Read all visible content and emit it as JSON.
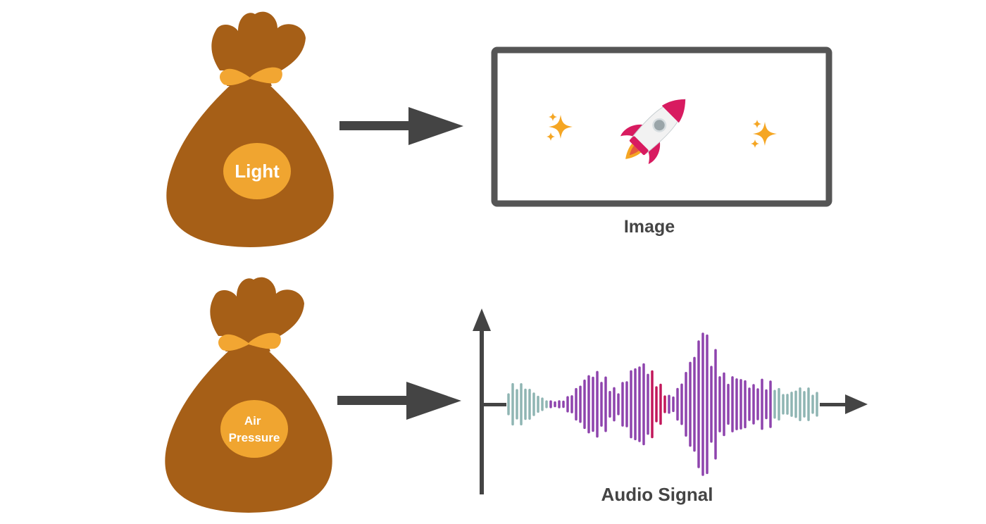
{
  "bags": [
    {
      "label_lines": [
        "Light"
      ]
    },
    {
      "label_lines": [
        "Air",
        "Pressure"
      ]
    }
  ],
  "outputs": {
    "image_caption": "Image",
    "audio_caption": "Audio Signal"
  },
  "icons": {
    "bag": "money-bag-icon",
    "rocket": "rocket-icon",
    "sparkles": "sparkles-icon",
    "arrow": "right-arrow-icon"
  },
  "colors": {
    "bag_body": "#a65f17",
    "bag_tie": "#f2a632",
    "label_oval": "#f0a530",
    "label_text": "#ffffff",
    "arrow": "#444444",
    "frame": "#555555",
    "caption": "#444444",
    "rocket_body": "#d81b60",
    "rocket_window": "#9aa5a9",
    "sparkle": "#f5a623",
    "wave_teal": "#8fb5b3",
    "wave_purple": "#8e44ad",
    "wave_magenta": "#c2185b"
  }
}
